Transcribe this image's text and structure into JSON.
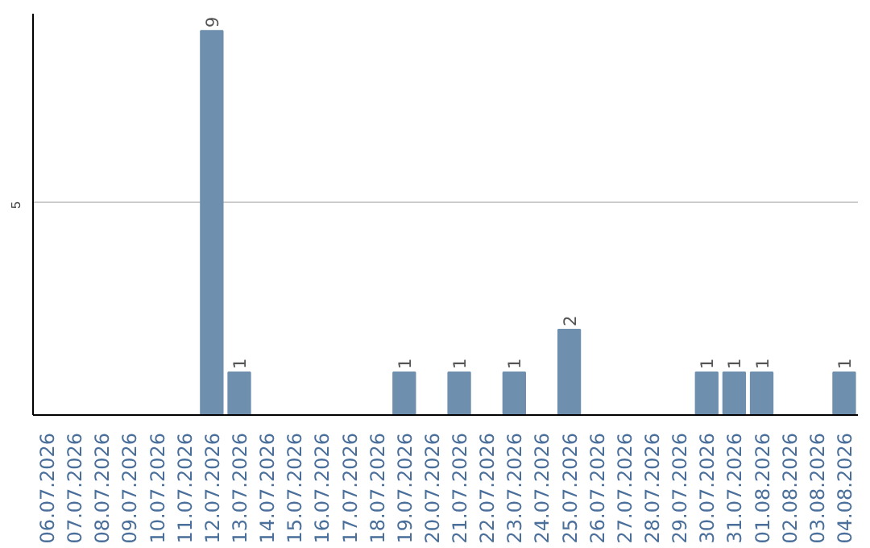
{
  "chart_data": {
    "type": "bar",
    "categories": [
      "06.07.2026",
      "07.07.2026",
      "08.07.2026",
      "09.07.2026",
      "10.07.2026",
      "11.07.2026",
      "12.07.2026",
      "13.07.2026",
      "14.07.2026",
      "15.07.2026",
      "16.07.2026",
      "17.07.2026",
      "18.07.2026",
      "19.07.2026",
      "20.07.2026",
      "21.07.2026",
      "22.07.2026",
      "23.07.2026",
      "24.07.2026",
      "25.07.2026",
      "26.07.2026",
      "27.07.2026",
      "28.07.2026",
      "29.07.2026",
      "30.07.2026",
      "31.07.2026",
      "01.08.2026",
      "02.08.2026",
      "03.08.2026",
      "04.08.2026"
    ],
    "values": [
      0,
      0,
      0,
      0,
      0,
      0,
      9,
      1,
      0,
      0,
      0,
      0,
      0,
      1,
      0,
      1,
      0,
      1,
      0,
      2,
      0,
      0,
      0,
      0,
      1,
      1,
      1,
      0,
      0,
      1
    ],
    "value_labels": [
      null,
      null,
      null,
      null,
      null,
      null,
      "9",
      "1",
      null,
      null,
      null,
      null,
      null,
      "1",
      null,
      "1",
      null,
      "1",
      null,
      "2",
      null,
      null,
      null,
      null,
      "1",
      "1",
      "1",
      null,
      null,
      "1"
    ],
    "color": "#6f8fae",
    "ylim": [
      0,
      9.4
    ],
    "yticks": [
      5
    ],
    "grid": "y"
  }
}
